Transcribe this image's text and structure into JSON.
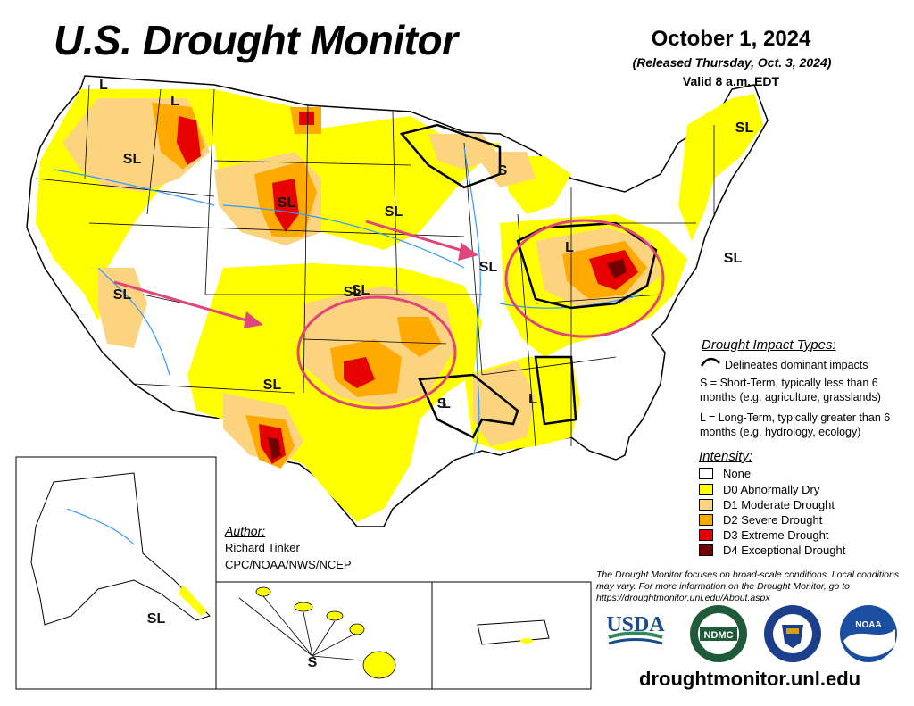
{
  "header": {
    "title": "U.S. Drought Monitor",
    "date": "October 1, 2024",
    "released": "(Released Thursday, Oct. 3, 2024)",
    "valid": "Valid 8 a.m. EDT"
  },
  "map": {
    "impact_labels": [
      "L",
      "L",
      "SL",
      "S",
      "SL",
      "SL",
      "SL",
      "SL",
      "SL",
      "L",
      "SL",
      "L",
      "S",
      "SL",
      "L",
      "SL",
      "SL",
      "SL",
      "S"
    ]
  },
  "legend": {
    "impact_title": "Drought Impact Types:",
    "delineates": "Delineates dominant impacts",
    "short_term": "S = Short-Term, typically less than 6 months (e.g. agriculture, grasslands)",
    "long_term": "L = Long-Term, typically greater than 6 months (e.g. hydrology, ecology)",
    "intensity_title": "Intensity:",
    "categories": [
      {
        "label": "None",
        "color": "#ffffff"
      },
      {
        "label": "D0 Abnormally Dry",
        "color": "#ffff00"
      },
      {
        "label": "D1 Moderate Drought",
        "color": "#fcd37f"
      },
      {
        "label": "D2 Severe Drought",
        "color": "#ffaa00"
      },
      {
        "label": "D3 Extreme Drought",
        "color": "#e60000"
      },
      {
        "label": "D4 Exceptional Drought",
        "color": "#730000"
      }
    ]
  },
  "author": {
    "title": "Author:",
    "name": "Richard Tinker",
    "org": "CPC/NOAA/NWS/NCEP"
  },
  "footer": {
    "disclaimer": "The Drought Monitor focuses on broad-scale conditions. Local conditions may vary. For more information on the Drought Monitor, go to https://droughtmonitor.unl.edu/About.aspx",
    "website": "droughtmonitor.unl.edu",
    "logos": {
      "usda": "USDA",
      "ndmc": "NDMC",
      "noaa": "NOAA"
    }
  },
  "colors": {
    "annotation_circle": "#e0457b",
    "water": "#3399ff"
  }
}
